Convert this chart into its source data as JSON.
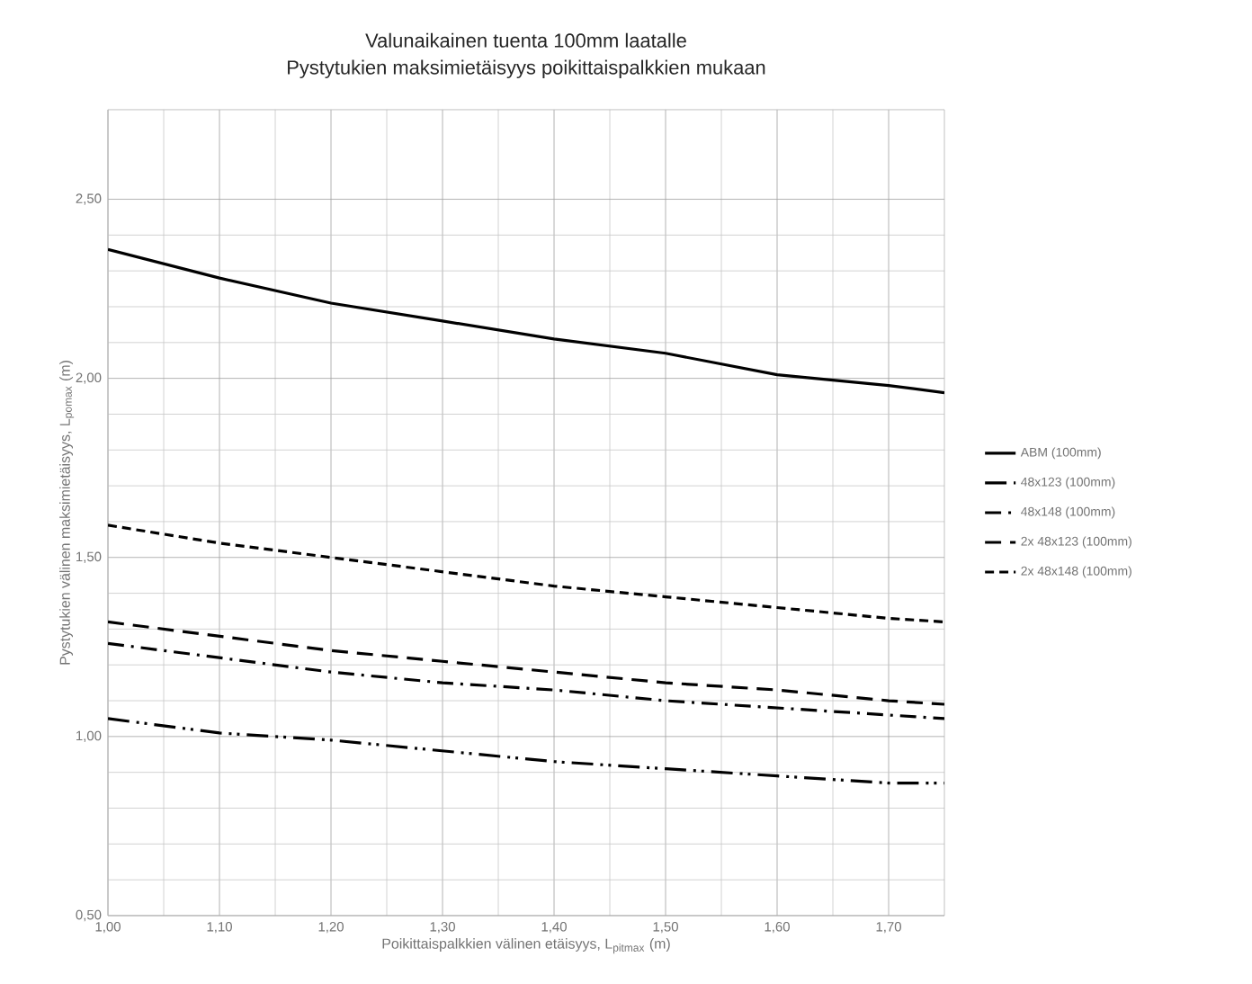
{
  "chart_data": {
    "type": "line",
    "title": "Valunaikainen tuenta 100mm laatalle",
    "subtitle": "Pystytukien maksimietäisyys poikittaispalkkien mukaan",
    "xlabel": "Poikittaispalkkien välinen etäisyys, L$_{pitmax}$ (m)",
    "ylabel": "Pystytukien välinen maksimietäisyys, L$_{pomax}$ (m)",
    "x": [
      1.0,
      1.1,
      1.2,
      1.3,
      1.4,
      1.5,
      1.6,
      1.7,
      1.75
    ],
    "series": [
      {
        "name": "ABM (100mm)",
        "color": "#000000",
        "line_style": "solid",
        "values": [
          2.36,
          2.28,
          2.21,
          2.16,
          2.11,
          2.07,
          2.01,
          1.98,
          1.96
        ]
      },
      {
        "name": "48x123 (100mm)",
        "color": "#000000",
        "line_style": "dashdotdot",
        "values": [
          1.05,
          1.01,
          0.99,
          0.96,
          0.93,
          0.91,
          0.89,
          0.87,
          0.87
        ]
      },
      {
        "name": "48x148 (100mm)",
        "color": "#000000",
        "line_style": "dashdot",
        "values": [
          1.26,
          1.22,
          1.18,
          1.15,
          1.13,
          1.1,
          1.08,
          1.06,
          1.05
        ]
      },
      {
        "name": "2x 48x123 (100mm)",
        "color": "#000000",
        "line_style": "dashed",
        "values": [
          1.32,
          1.28,
          1.24,
          1.21,
          1.18,
          1.15,
          1.13,
          1.1,
          1.09
        ]
      },
      {
        "name": "2x 48x148 (100mm)",
        "color": "#000000",
        "line_style": "shortdashed",
        "values": [
          1.59,
          1.54,
          1.5,
          1.46,
          1.42,
          1.39,
          1.36,
          1.33,
          1.32
        ]
      }
    ],
    "xlim": [
      1.0,
      1.75
    ],
    "ylim": [
      0.5,
      2.75
    ],
    "xticks": [
      {
        "value": 1.0,
        "label": "1,00"
      },
      {
        "value": 1.1,
        "label": "1,10"
      },
      {
        "value": 1.2,
        "label": "1,20"
      },
      {
        "value": 1.3,
        "label": "1,30"
      },
      {
        "value": 1.4,
        "label": "1,40"
      },
      {
        "value": 1.5,
        "label": "1,50"
      },
      {
        "value": 1.6,
        "label": "1,60"
      },
      {
        "value": 1.7,
        "label": "1,70"
      }
    ],
    "yticks": [
      {
        "value": 0.5,
        "label": "0,50"
      },
      {
        "value": 1.0,
        "label": "1,00"
      },
      {
        "value": 1.5,
        "label": "1,50"
      },
      {
        "value": 2.0,
        "label": "2,00"
      },
      {
        "value": 2.5,
        "label": "2,50"
      }
    ],
    "grid": true,
    "legend": "right",
    "marker": "none"
  }
}
